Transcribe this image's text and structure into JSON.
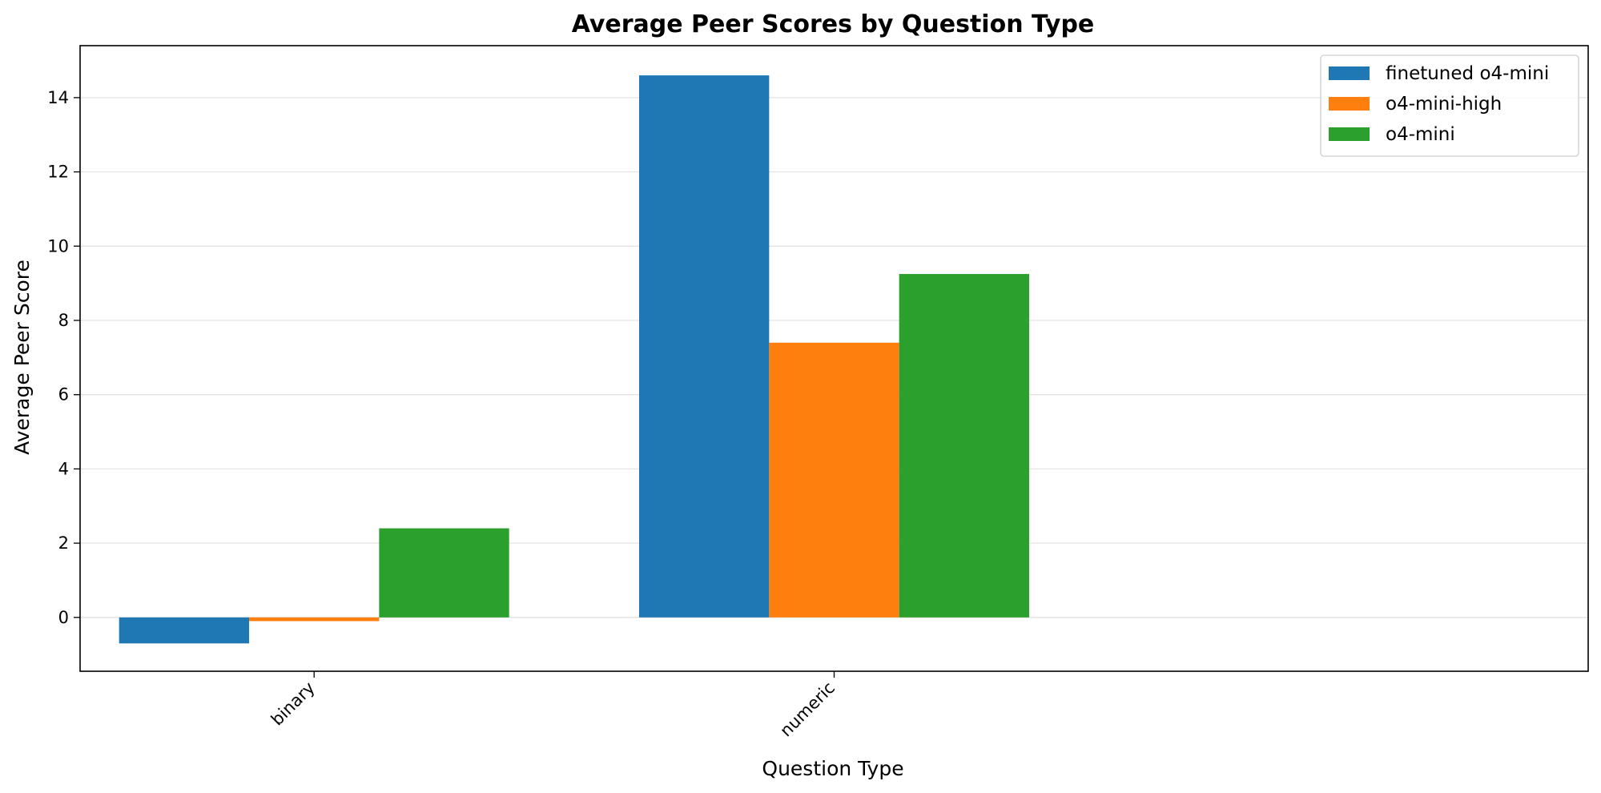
{
  "chart_data": {
    "type": "bar",
    "title": "Average Peer Scores by Question Type",
    "xlabel": "Question Type",
    "ylabel": "Average Peer Score",
    "categories": [
      "binary",
      "numeric"
    ],
    "series": [
      {
        "name": "finetuned o4-mini",
        "color": "#1f77b4",
        "values": [
          -0.7,
          14.6
        ]
      },
      {
        "name": "o4-mini-high",
        "color": "#ff7f0e",
        "values": [
          -0.1,
          7.4
        ]
      },
      {
        "name": "o4-mini",
        "color": "#2ca02c",
        "values": [
          2.4,
          9.25
        ]
      }
    ],
    "ylim": [
      -1.45,
      15.4
    ],
    "yticks": [
      0,
      2,
      4,
      6,
      8,
      10,
      12,
      14
    ],
    "grid": true,
    "legend_position": "top-right"
  }
}
